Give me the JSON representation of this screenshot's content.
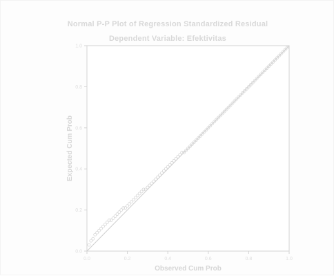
{
  "chart_data": {
    "type": "scatter",
    "title": "Normal P-P Plot of Regression Standardized Residual",
    "subtitle": "Dependent Variable: Efektivitas",
    "xlabel": "Observed Cum Prob",
    "ylabel": "Expected Cum Prob",
    "xlim": [
      0.0,
      1.0
    ],
    "ylim": [
      0.0,
      1.0
    ],
    "x_ticks": [
      "0.0",
      "0.2",
      "0.4",
      "0.6",
      "0.8",
      "1.0"
    ],
    "y_ticks": [
      "0.0",
      "0.2",
      "0.4",
      "0.6",
      "0.8",
      "1.0"
    ],
    "grid": false,
    "reference_line": {
      "x": [
        0.0,
        1.0
      ],
      "y": [
        0.0,
        1.0
      ]
    },
    "points": {
      "x": [
        0.01,
        0.02,
        0.03,
        0.04,
        0.05,
        0.06,
        0.07,
        0.08,
        0.09,
        0.1,
        0.11,
        0.12,
        0.13,
        0.14,
        0.15,
        0.16,
        0.17,
        0.18,
        0.19,
        0.2,
        0.21,
        0.22,
        0.23,
        0.24,
        0.25,
        0.26,
        0.27,
        0.28,
        0.29,
        0.3,
        0.31,
        0.32,
        0.33,
        0.34,
        0.35,
        0.36,
        0.37,
        0.38,
        0.39,
        0.4,
        0.41,
        0.42,
        0.43,
        0.44,
        0.45,
        0.46,
        0.47,
        0.48,
        0.49,
        0.5,
        0.51,
        0.52,
        0.53,
        0.54,
        0.55,
        0.56,
        0.57,
        0.58,
        0.59,
        0.6,
        0.61,
        0.62,
        0.63,
        0.64,
        0.65,
        0.66,
        0.67,
        0.68,
        0.69,
        0.7,
        0.71,
        0.72,
        0.73,
        0.74,
        0.75,
        0.76,
        0.77,
        0.78,
        0.79,
        0.8,
        0.81,
        0.82,
        0.83,
        0.84,
        0.85,
        0.86,
        0.87,
        0.88,
        0.89,
        0.9,
        0.91,
        0.92,
        0.93,
        0.94,
        0.95,
        0.96,
        0.97,
        0.98,
        0.99
      ],
      "y": [
        0.03,
        0.05,
        0.06,
        0.08,
        0.09,
        0.1,
        0.11,
        0.12,
        0.13,
        0.14,
        0.15,
        0.15,
        0.16,
        0.17,
        0.18,
        0.19,
        0.2,
        0.21,
        0.21,
        0.22,
        0.23,
        0.24,
        0.25,
        0.26,
        0.27,
        0.28,
        0.29,
        0.3,
        0.3,
        0.31,
        0.32,
        0.33,
        0.34,
        0.35,
        0.36,
        0.37,
        0.38,
        0.39,
        0.4,
        0.41,
        0.42,
        0.43,
        0.44,
        0.45,
        0.46,
        0.47,
        0.48,
        0.48,
        0.49,
        0.5,
        0.51,
        0.52,
        0.53,
        0.54,
        0.55,
        0.56,
        0.57,
        0.58,
        0.59,
        0.6,
        0.61,
        0.62,
        0.63,
        0.64,
        0.65,
        0.66,
        0.67,
        0.68,
        0.69,
        0.7,
        0.71,
        0.72,
        0.73,
        0.74,
        0.75,
        0.76,
        0.77,
        0.78,
        0.79,
        0.8,
        0.81,
        0.82,
        0.83,
        0.84,
        0.85,
        0.86,
        0.87,
        0.88,
        0.89,
        0.9,
        0.91,
        0.92,
        0.93,
        0.94,
        0.95,
        0.96,
        0.97,
        0.98,
        0.99
      ]
    }
  },
  "colors": {
    "axis": "#d3d3d3",
    "tick_text": "#dedede",
    "label_text": "#d6d6d6",
    "ref_line": "#cfcfcf",
    "marker": "#d7d7d7",
    "plot_bg": "#ffffff"
  }
}
